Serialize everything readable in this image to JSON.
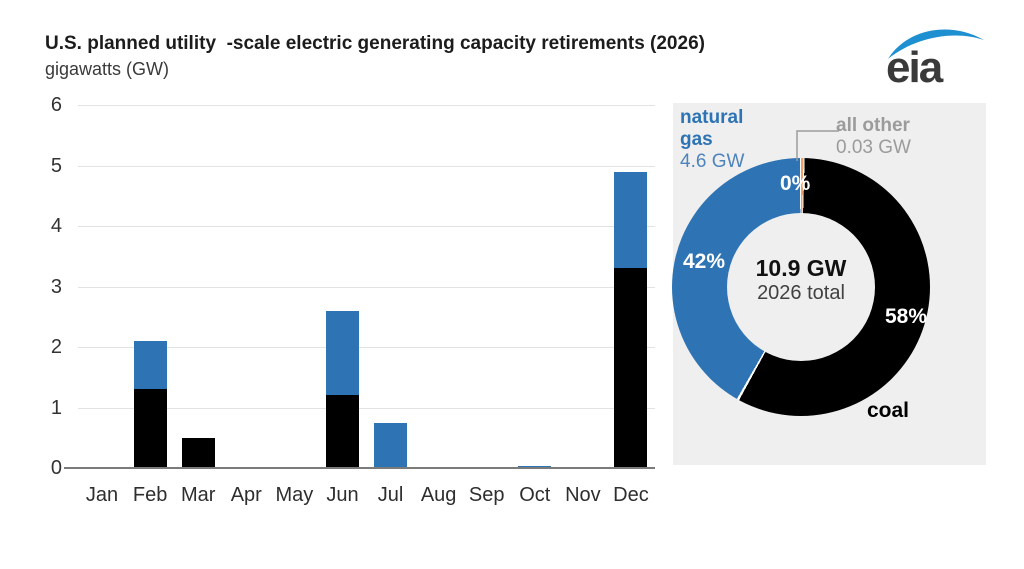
{
  "title": "U.S. planned utility  -scale electric generating capacity retirements (2026)",
  "subtitle": "gigawatts (GW)",
  "logo": {
    "text": "eia",
    "swoosh_color": "#1e8fd0"
  },
  "colors": {
    "gas": "#2e74b4",
    "gas_light": "#4e83bd",
    "coal": "#000000",
    "other": "#eda26b",
    "panel": "#efefef",
    "grid": "#e2e2e2",
    "axis": "#7b7b7b",
    "gray_label": "#9b9b9b",
    "white_label": "#ffffff"
  },
  "chart_data": [
    {
      "type": "bar",
      "stacked": true,
      "title": "U.S. planned utility-scale electric generating capacity retirements (2026)",
      "ylabel": "gigawatts (GW)",
      "ylim": [
        0,
        6
      ],
      "yticks": [
        0,
        1,
        2,
        3,
        4,
        5,
        6
      ],
      "grid": true,
      "categories": [
        "Jan",
        "Feb",
        "Mar",
        "Apr",
        "May",
        "Jun",
        "Jul",
        "Aug",
        "Sep",
        "Oct",
        "Nov",
        "Dec"
      ],
      "series": [
        {
          "name": "coal",
          "color_key": "coal",
          "values": [
            0,
            1.3,
            0.5,
            0,
            0,
            1.2,
            0,
            0,
            0,
            0,
            0,
            3.3
          ]
        },
        {
          "name": "natural gas",
          "color_key": "gas",
          "values": [
            0,
            0.8,
            0,
            0.01,
            0.01,
            1.4,
            0.75,
            0,
            0,
            0.03,
            0,
            1.6
          ]
        }
      ]
    },
    {
      "type": "pie",
      "subtype": "donut",
      "slices": [
        {
          "name": "all other",
          "gw": 0.03,
          "pct": 0.3,
          "color_key": "other"
        },
        {
          "name": "coal",
          "gw": 6.3,
          "pct": 58,
          "color_key": "coal"
        },
        {
          "name": "natural gas",
          "gw": 4.6,
          "pct": 42,
          "color_key": "gas"
        }
      ],
      "center": {
        "line1": "10.9 GW",
        "line2": "2026 total"
      },
      "labels": {
        "gas_name_line1": "natural",
        "gas_name_line2": "gas",
        "gas_value": "4.6 GW",
        "other_name": "all other",
        "other_value": "0.03 GW",
        "coal_name": "coal",
        "pct_gas": "42%",
        "pct_coal": "58%",
        "pct_other": "0%"
      },
      "legend_position": "outside-labels"
    }
  ]
}
